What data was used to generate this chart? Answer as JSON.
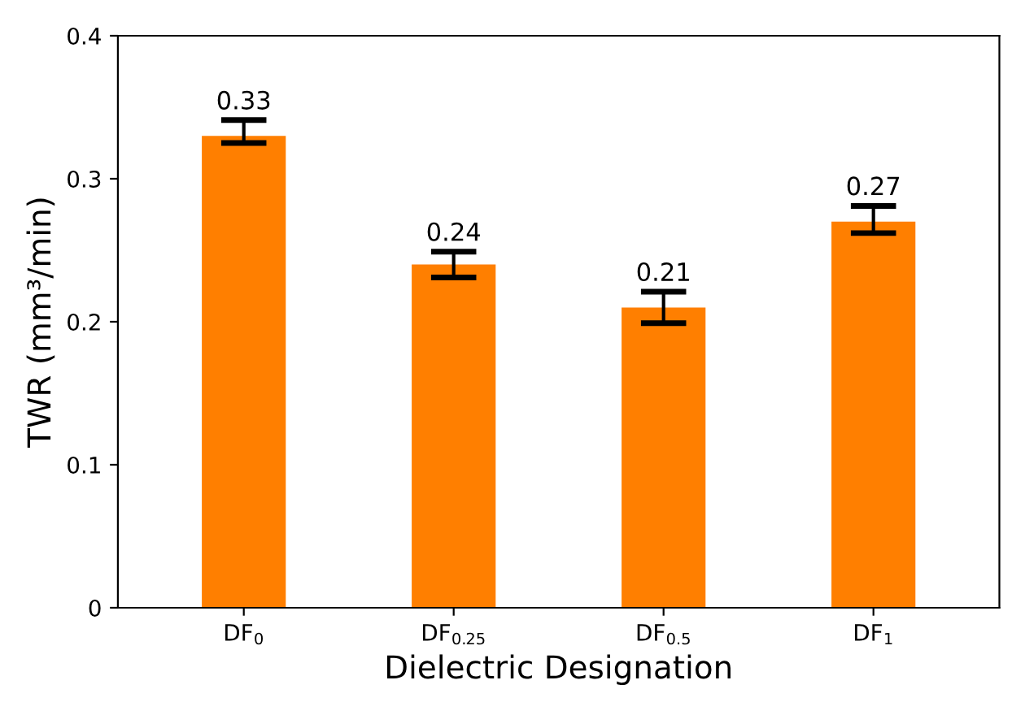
{
  "chart_data": {
    "type": "bar",
    "xlabel": "Dielectric Designation",
    "ylabel": "TWR (mm³/min)",
    "categories": [
      "DF$_{0}$",
      "DF$_{0.25}$",
      "DF$_{0.5}$",
      "DF$_{1}$"
    ],
    "values": [
      0.33,
      0.24,
      0.21,
      0.27
    ],
    "errors": [
      [
        0.325,
        0.341
      ],
      [
        0.231,
        0.249
      ],
      [
        0.199,
        0.221
      ],
      [
        0.262,
        0.281
      ]
    ],
    "color": "#ff7f00",
    "ylim": [
      0,
      0.4
    ],
    "yticks": [
      0,
      0.1,
      0.2,
      0.3,
      0.4
    ],
    "grid": false,
    "data_labels": true
  }
}
